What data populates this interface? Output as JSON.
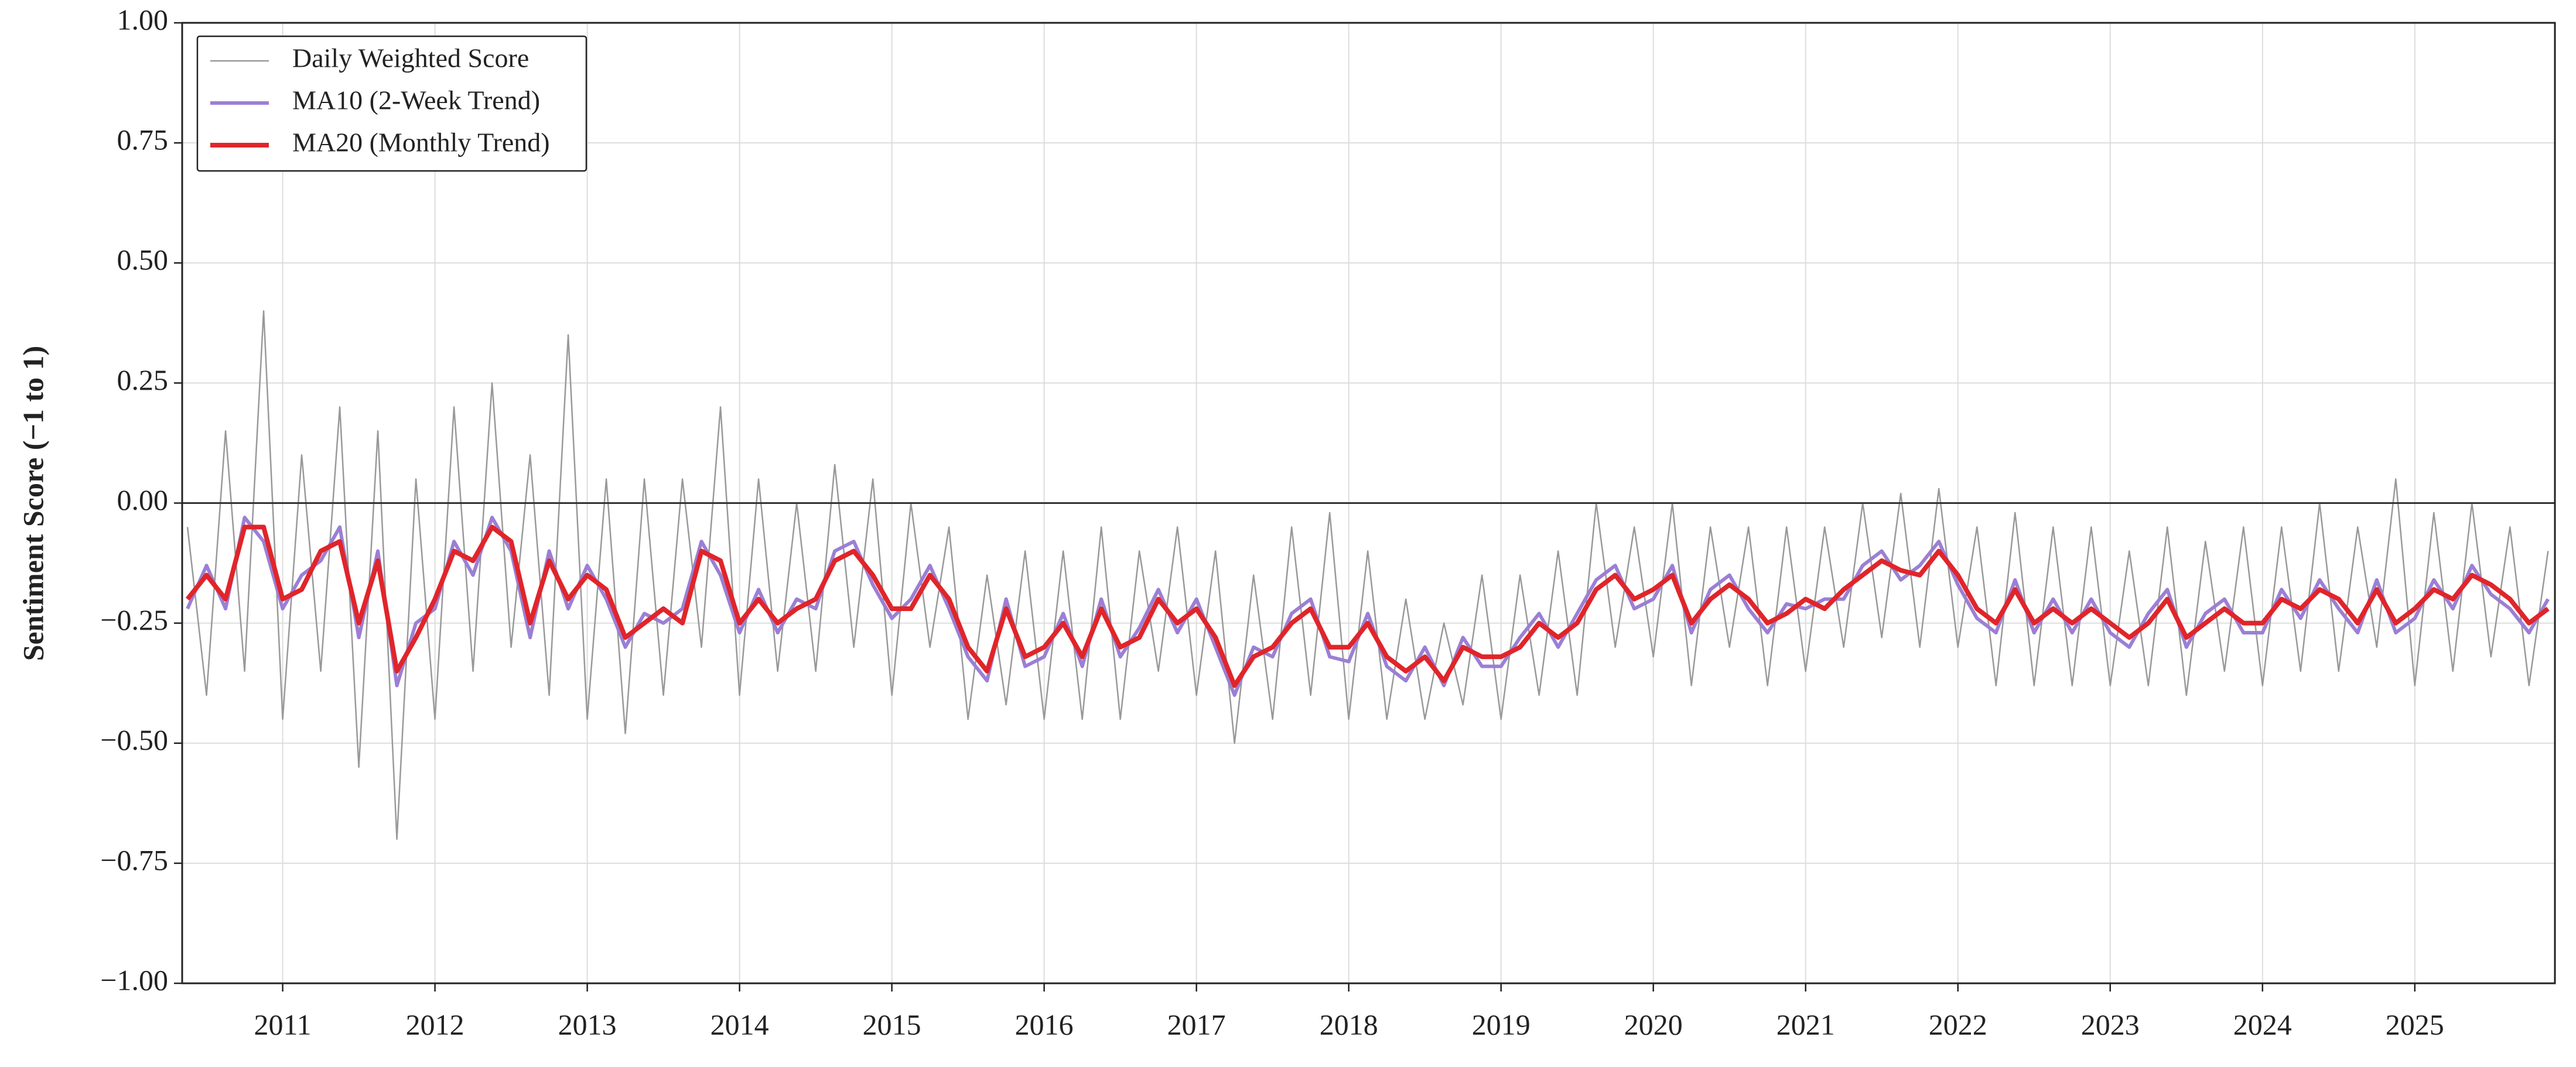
{
  "chart_data": {
    "type": "line",
    "y_label": "Sentiment Score (−1 to 1)",
    "xlim": [
      2010.34,
      2025.92
    ],
    "xticks": [
      2011,
      2012,
      2013,
      2014,
      2015,
      2016,
      2017,
      2018,
      2019,
      2020,
      2021,
      2022,
      2023,
      2024,
      2025
    ],
    "ylim": [
      -1,
      1
    ],
    "yticks": [
      {
        "value": 1,
        "label": "1.00"
      },
      {
        "value": 0.75,
        "label": "0.75"
      },
      {
        "value": 0.5,
        "label": "0.50"
      },
      {
        "value": 0.25,
        "label": "0.25"
      },
      {
        "value": 0,
        "label": "0.00"
      },
      {
        "value": -0.25,
        "label": "−0.25"
      },
      {
        "value": -0.5,
        "label": "−0.50"
      },
      {
        "value": -0.75,
        "label": "−0.75"
      },
      {
        "value": -1,
        "label": "−1.00"
      }
    ],
    "grid": true,
    "hline": 0,
    "legend": "upper left",
    "x": [
      2010.375,
      2010.5,
      2010.625,
      2010.75,
      2010.875,
      2011,
      2011.125,
      2011.25,
      2011.375,
      2011.5,
      2011.625,
      2011.75,
      2011.875,
      2012,
      2012.125,
      2012.25,
      2012.375,
      2012.5,
      2012.625,
      2012.75,
      2012.875,
      2013,
      2013.125,
      2013.25,
      2013.375,
      2013.5,
      2013.625,
      2013.75,
      2013.875,
      2014,
      2014.125,
      2014.25,
      2014.375,
      2014.5,
      2014.625,
      2014.75,
      2014.875,
      2015,
      2015.125,
      2015.25,
      2015.375,
      2015.5,
      2015.625,
      2015.75,
      2015.875,
      2016,
      2016.125,
      2016.25,
      2016.375,
      2016.5,
      2016.625,
      2016.75,
      2016.875,
      2017,
      2017.125,
      2017.25,
      2017.375,
      2017.5,
      2017.625,
      2017.75,
      2017.875,
      2018,
      2018.125,
      2018.25,
      2018.375,
      2018.5,
      2018.625,
      2018.75,
      2018.875,
      2019,
      2019.125,
      2019.25,
      2019.375,
      2019.5,
      2019.625,
      2019.75,
      2019.875,
      2020,
      2020.125,
      2020.25,
      2020.375,
      2020.5,
      2020.625,
      2020.75,
      2020.875,
      2021,
      2021.125,
      2021.25,
      2021.375,
      2021.5,
      2021.625,
      2021.75,
      2021.875,
      2022,
      2022.125,
      2022.25,
      2022.375,
      2022.5,
      2022.625,
      2022.75,
      2022.875,
      2023,
      2023.125,
      2023.25,
      2023.375,
      2023.5,
      2023.625,
      2023.75,
      2023.875,
      2024,
      2024.125,
      2024.25,
      2024.375,
      2024.5,
      2024.625,
      2024.75,
      2024.875,
      2025,
      2025.125,
      2025.25,
      2025.375,
      2025.5,
      2025.625,
      2025.75,
      2025.875
    ],
    "series": [
      {
        "name": "Daily Weighted Score",
        "color": "#999999",
        "values": [
          -0.05,
          -0.4,
          0.15,
          -0.35,
          0.4,
          -0.45,
          0.1,
          -0.35,
          0.2,
          -0.55,
          0.15,
          -0.7,
          0.05,
          -0.45,
          0.2,
          -0.35,
          0.25,
          -0.3,
          0.1,
          -0.4,
          0.35,
          -0.45,
          0.05,
          -0.48,
          0.05,
          -0.4,
          0.05,
          -0.3,
          0.2,
          -0.4,
          0.05,
          -0.35,
          0.0,
          -0.35,
          0.08,
          -0.3,
          0.05,
          -0.4,
          0.0,
          -0.3,
          -0.05,
          -0.45,
          -0.15,
          -0.42,
          -0.1,
          -0.45,
          -0.1,
          -0.45,
          -0.05,
          -0.45,
          -0.1,
          -0.35,
          -0.05,
          -0.4,
          -0.1,
          -0.5,
          -0.15,
          -0.45,
          -0.05,
          -0.4,
          -0.02,
          -0.45,
          -0.1,
          -0.45,
          -0.2,
          -0.45,
          -0.25,
          -0.42,
          -0.15,
          -0.45,
          -0.15,
          -0.4,
          -0.1,
          -0.4,
          0.0,
          -0.3,
          -0.05,
          -0.32,
          0.0,
          -0.38,
          -0.05,
          -0.3,
          -0.05,
          -0.38,
          -0.05,
          -0.35,
          -0.05,
          -0.3,
          0.0,
          -0.28,
          0.02,
          -0.3,
          0.03,
          -0.3,
          -0.05,
          -0.38,
          -0.02,
          -0.38,
          -0.05,
          -0.38,
          -0.05,
          -0.38,
          -0.1,
          -0.38,
          -0.05,
          -0.4,
          -0.08,
          -0.35,
          -0.05,
          -0.38,
          -0.05,
          -0.35,
          0.0,
          -0.35,
          -0.05,
          -0.3,
          0.05,
          -0.38,
          -0.02,
          -0.35,
          0.0,
          -0.32,
          -0.05,
          -0.38,
          -0.1
        ]
      },
      {
        "name": "MA10 (2-Week Trend)",
        "color": "#9b7fd4",
        "values": [
          -0.22,
          -0.13,
          -0.22,
          -0.03,
          -0.08,
          -0.22,
          -0.15,
          -0.12,
          -0.05,
          -0.28,
          -0.1,
          -0.38,
          -0.25,
          -0.22,
          -0.08,
          -0.15,
          -0.03,
          -0.1,
          -0.28,
          -0.1,
          -0.22,
          -0.13,
          -0.2,
          -0.3,
          -0.23,
          -0.25,
          -0.22,
          -0.08,
          -0.15,
          -0.27,
          -0.18,
          -0.27,
          -0.2,
          -0.22,
          -0.1,
          -0.08,
          -0.17,
          -0.24,
          -0.2,
          -0.13,
          -0.22,
          -0.32,
          -0.37,
          -0.2,
          -0.34,
          -0.32,
          -0.23,
          -0.34,
          -0.2,
          -0.32,
          -0.26,
          -0.18,
          -0.27,
          -0.2,
          -0.3,
          -0.4,
          -0.3,
          -0.32,
          -0.23,
          -0.2,
          -0.32,
          -0.33,
          -0.23,
          -0.34,
          -0.37,
          -0.3,
          -0.38,
          -0.28,
          -0.34,
          -0.34,
          -0.28,
          -0.23,
          -0.3,
          -0.23,
          -0.16,
          -0.13,
          -0.22,
          -0.2,
          -0.13,
          -0.27,
          -0.18,
          -0.15,
          -0.22,
          -0.27,
          -0.21,
          -0.22,
          -0.2,
          -0.2,
          -0.13,
          -0.1,
          -0.16,
          -0.13,
          -0.08,
          -0.17,
          -0.24,
          -0.27,
          -0.16,
          -0.27,
          -0.2,
          -0.27,
          -0.2,
          -0.27,
          -0.3,
          -0.23,
          -0.18,
          -0.3,
          -0.23,
          -0.2,
          -0.27,
          -0.27,
          -0.18,
          -0.24,
          -0.16,
          -0.22,
          -0.27,
          -0.16,
          -0.27,
          -0.24,
          -0.16,
          -0.22,
          -0.13,
          -0.19,
          -0.22,
          -0.27,
          -0.2
        ]
      },
      {
        "name": "MA20 (Monthly Trend)",
        "color": "#e0252a",
        "values": [
          -0.2,
          -0.15,
          -0.2,
          -0.05,
          -0.05,
          -0.2,
          -0.18,
          -0.1,
          -0.08,
          -0.25,
          -0.12,
          -0.35,
          -0.28,
          -0.2,
          -0.1,
          -0.12,
          -0.05,
          -0.08,
          -0.25,
          -0.12,
          -0.2,
          -0.15,
          -0.18,
          -0.28,
          -0.25,
          -0.22,
          -0.25,
          -0.1,
          -0.12,
          -0.25,
          -0.2,
          -0.25,
          -0.22,
          -0.2,
          -0.12,
          -0.1,
          -0.15,
          -0.22,
          -0.22,
          -0.15,
          -0.2,
          -0.3,
          -0.35,
          -0.22,
          -0.32,
          -0.3,
          -0.25,
          -0.32,
          -0.22,
          -0.3,
          -0.28,
          -0.2,
          -0.25,
          -0.22,
          -0.28,
          -0.38,
          -0.32,
          -0.3,
          -0.25,
          -0.22,
          -0.3,
          -0.3,
          -0.25,
          -0.32,
          -0.35,
          -0.32,
          -0.37,
          -0.3,
          -0.32,
          -0.32,
          -0.3,
          -0.25,
          -0.28,
          -0.25,
          -0.18,
          -0.15,
          -0.2,
          -0.18,
          -0.15,
          -0.25,
          -0.2,
          -0.17,
          -0.2,
          -0.25,
          -0.23,
          -0.2,
          -0.22,
          -0.18,
          -0.15,
          -0.12,
          -0.14,
          -0.15,
          -0.1,
          -0.15,
          -0.22,
          -0.25,
          -0.18,
          -0.25,
          -0.22,
          -0.25,
          -0.22,
          -0.25,
          -0.28,
          -0.25,
          -0.2,
          -0.28,
          -0.25,
          -0.22,
          -0.25,
          -0.25,
          -0.2,
          -0.22,
          -0.18,
          -0.2,
          -0.25,
          -0.18,
          -0.25,
          -0.22,
          -0.18,
          -0.2,
          -0.15,
          -0.17,
          -0.2,
          -0.25,
          -0.22
        ]
      }
    ]
  }
}
